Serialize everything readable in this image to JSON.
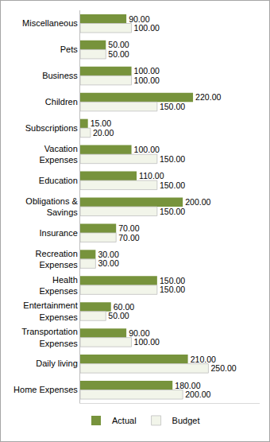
{
  "chart_data": {
    "type": "bar",
    "orientation": "horizontal",
    "categories": [
      "Miscellaneous",
      "Pets",
      "Business",
      "Children",
      "Subscriptions",
      "Vacation Expenses",
      "Education",
      "Obligations & Savings",
      "Insurance",
      "Recreation Expenses",
      "Health Expenses",
      "Entertainment Expenses",
      "Transportation Expenses",
      "Daily living",
      "Home Expenses"
    ],
    "series": [
      {
        "name": "Actual",
        "color": "#77933c",
        "values": [
          90,
          50,
          100,
          220,
          15,
          100,
          110,
          200,
          70,
          30,
          150,
          60,
          90,
          210,
          180
        ],
        "value_labels": [
          "90.00",
          "50.00",
          "100.00",
          "220.00",
          "15.00",
          "100.00",
          "110.00",
          "200.00",
          "70.00",
          "30.00",
          "150.00",
          "60.00",
          "90.00",
          "210.00",
          "180.00"
        ]
      },
      {
        "name": "Budget",
        "color": "#f2f5ea",
        "values": [
          100,
          50,
          100,
          150,
          20,
          150,
          150,
          150,
          70,
          30,
          150,
          50,
          100,
          250,
          200
        ],
        "value_labels": [
          "100.00",
          "50.00",
          "100.00",
          "150.00",
          "20.00",
          "150.00",
          "150.00",
          "150.00",
          "70.00",
          "30.00",
          "150.00",
          "50.00",
          "100.00",
          "250.00",
          "200.00"
        ]
      }
    ],
    "xlim": [
      0,
      350
    ],
    "data_labels": true,
    "tick_labels": "y",
    "grid": false,
    "legend": "bottom"
  }
}
